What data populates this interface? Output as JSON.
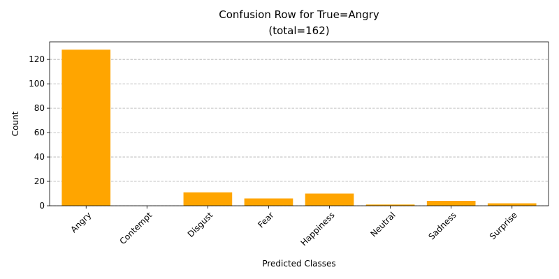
{
  "chart_data": {
    "type": "bar",
    "title": "Confusion Row for True=Angry",
    "subtitle": "(total=162)",
    "xlabel": "Predicted Classes",
    "ylabel": "Count",
    "categories": [
      "Angry",
      "Contempt",
      "Disgust",
      "Fear",
      "Happiness",
      "Neutral",
      "Sadness",
      "Surprise"
    ],
    "values": [
      128,
      0,
      11,
      6,
      10,
      1,
      4,
      2
    ],
    "ylim": [
      0,
      134.4
    ],
    "yticks": [
      0,
      20,
      40,
      60,
      80,
      100,
      120
    ],
    "grid": "y-dashed",
    "bar_color": "#ffa500"
  }
}
